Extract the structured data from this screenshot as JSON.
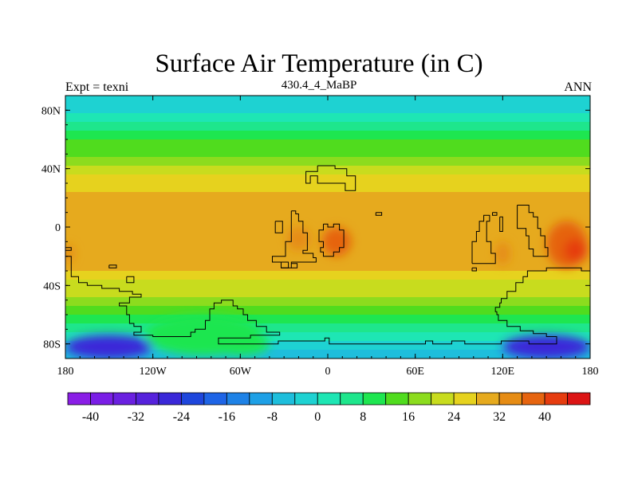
{
  "chart_data": {
    "type": "heatmap",
    "title": "Surface Air Temperature (in C)",
    "subtitle": "430.4_4_MaBP",
    "left_label": "Expt = texni",
    "right_label": "ANN",
    "x_ticks": [
      {
        "value": -180,
        "label": "180"
      },
      {
        "value": -120,
        "label": "120W"
      },
      {
        "value": -60,
        "label": "60W"
      },
      {
        "value": 0,
        "label": "0"
      },
      {
        "value": 60,
        "label": "60E"
      },
      {
        "value": 120,
        "label": "120E"
      },
      {
        "value": 180,
        "label": "180"
      }
    ],
    "y_ticks": [
      {
        "value": 80,
        "label": "80N"
      },
      {
        "value": 40,
        "label": "40N"
      },
      {
        "value": 0,
        "label": "0"
      },
      {
        "value": -40,
        "label": "40S"
      },
      {
        "value": -80,
        "label": "80S"
      }
    ],
    "xlim": [
      -180,
      180
    ],
    "ylim": [
      -90,
      90
    ],
    "colorbar": {
      "levels": [
        -44,
        -40,
        -36,
        -32,
        -28,
        -24,
        -20,
        -16,
        -12,
        -8,
        -4,
        0,
        4,
        8,
        12,
        16,
        20,
        24,
        28,
        32,
        36,
        40,
        44
      ],
      "tick_labels": [
        {
          "value": -40,
          "label": "-40"
        },
        {
          "value": -32,
          "label": "-32"
        },
        {
          "value": -24,
          "label": "-24"
        },
        {
          "value": -16,
          "label": "-16"
        },
        {
          "value": -8,
          "label": "-8"
        },
        {
          "value": 0,
          "label": "0"
        },
        {
          "value": 8,
          "label": "8"
        },
        {
          "value": 16,
          "label": "16"
        },
        {
          "value": 24,
          "label": "24"
        },
        {
          "value": 32,
          "label": "32"
        },
        {
          "value": 40,
          "label": "40"
        }
      ],
      "colors": [
        "#8a1ee6",
        "#7a1ee6",
        "#6a20e0",
        "#5622dc",
        "#3a28d8",
        "#1e46dc",
        "#1e64e6",
        "#1e82e6",
        "#1ea0e6",
        "#1ebedc",
        "#1ed2d2",
        "#1ee6b4",
        "#1ee68c",
        "#1ee650",
        "#50dc1e",
        "#8cdc1e",
        "#c8dc1e",
        "#e6d21e",
        "#e6aa1e",
        "#e68c14",
        "#e6640f",
        "#e63c0f",
        "#dc1414"
      ]
    },
    "zonal_mean_temperature": [
      {
        "lat": 90,
        "value": -4
      },
      {
        "lat": 84,
        "value": -1
      },
      {
        "lat": 78,
        "value": 2
      },
      {
        "lat": 72,
        "value": 5
      },
      {
        "lat": 66,
        "value": 9
      },
      {
        "lat": 60,
        "value": 12
      },
      {
        "lat": 54,
        "value": 15
      },
      {
        "lat": 48,
        "value": 18
      },
      {
        "lat": 42,
        "value": 21
      },
      {
        "lat": 36,
        "value": 24
      },
      {
        "lat": 30,
        "value": 26
      },
      {
        "lat": 24,
        "value": 28
      },
      {
        "lat": 18,
        "value": 29
      },
      {
        "lat": 12,
        "value": 30
      },
      {
        "lat": 6,
        "value": 30
      },
      {
        "lat": 0,
        "value": 30
      },
      {
        "lat": -6,
        "value": 30
      },
      {
        "lat": -12,
        "value": 30
      },
      {
        "lat": -18,
        "value": 29
      },
      {
        "lat": -24,
        "value": 28
      },
      {
        "lat": -30,
        "value": 26
      },
      {
        "lat": -36,
        "value": 23
      },
      {
        "lat": -42,
        "value": 20
      },
      {
        "lat": -48,
        "value": 16
      },
      {
        "lat": -54,
        "value": 12
      },
      {
        "lat": -60,
        "value": 8
      },
      {
        "lat": -66,
        "value": 4
      },
      {
        "lat": -72,
        "value": 0
      },
      {
        "lat": -78,
        "value": -3
      },
      {
        "lat": -84,
        "value": -6
      },
      {
        "lat": -90,
        "value": -8
      }
    ],
    "warm_regions": [
      {
        "lon": -20,
        "lat": -8,
        "rlon": 8,
        "rlat": 8,
        "value": 34
      },
      {
        "lon": 6,
        "lat": -10,
        "rlon": 10,
        "rlat": 10,
        "value": 36
      },
      {
        "lon": 120,
        "lat": -18,
        "rlon": 5,
        "rlat": 8,
        "value": 33
      },
      {
        "lon": 164,
        "lat": -12,
        "rlon": 14,
        "rlat": 16,
        "value": 38
      },
      {
        "lon": 170,
        "lat": -16,
        "rlon": 8,
        "rlat": 8,
        "value": 42
      },
      {
        "lon": -178,
        "lat": -18,
        "rlon": 4,
        "rlat": 6,
        "value": 33
      }
    ],
    "cold_regions": [
      {
        "lon": -85,
        "lat": -74,
        "rlon": 40,
        "rlat": 14,
        "value": 10
      },
      {
        "lon": -60,
        "lat": -80,
        "rlon": 20,
        "rlat": 8,
        "value": 8
      },
      {
        "lon": -150,
        "lat": -82,
        "rlon": 30,
        "rlat": 8,
        "value": -26
      },
      {
        "lon": 150,
        "lat": -82,
        "rlon": 30,
        "rlat": 8,
        "value": -26
      }
    ],
    "coastlines": [
      [
        [
          -7,
          42
        ],
        [
          5,
          42
        ],
        [
          5,
          40
        ],
        [
          13,
          40
        ],
        [
          13,
          35
        ],
        [
          19,
          35
        ],
        [
          19,
          25
        ],
        [
          12,
          25
        ],
        [
          12,
          30
        ],
        [
          -7,
          30
        ],
        [
          -7,
          35
        ],
        [
          -12,
          35
        ],
        [
          -12,
          30
        ],
        [
          -15,
          30
        ],
        [
          -15,
          38
        ],
        [
          -7,
          38
        ],
        [
          -7,
          42
        ]
      ],
      [
        [
          -25,
          11
        ],
        [
          -22,
          11
        ],
        [
          -22,
          9
        ],
        [
          -20,
          9
        ],
        [
          -20,
          4
        ],
        [
          -17,
          4
        ],
        [
          -17,
          -4
        ],
        [
          -14,
          -4
        ],
        [
          -14,
          -16
        ],
        [
          -17,
          -16
        ],
        [
          -17,
          -18
        ],
        [
          -10,
          -18
        ],
        [
          -10,
          -21
        ],
        [
          -8,
          -21
        ],
        [
          -8,
          -24
        ],
        [
          -25,
          -24
        ],
        [
          -25,
          -28
        ],
        [
          -32,
          -28
        ],
        [
          -32,
          -24
        ],
        [
          -38,
          -24
        ],
        [
          -38,
          -20
        ],
        [
          -29,
          -20
        ],
        [
          -29,
          -10
        ],
        [
          -25,
          -10
        ],
        [
          -25,
          11
        ]
      ],
      [
        [
          -36,
          4
        ],
        [
          -31,
          4
        ],
        [
          -31,
          -4
        ],
        [
          -36,
          -4
        ],
        [
          -36,
          4
        ]
      ],
      [
        [
          -25,
          -28
        ],
        [
          -21,
          -28
        ],
        [
          -21,
          -25
        ],
        [
          -25,
          -25
        ]
      ],
      [
        [
          -32,
          -24
        ],
        [
          -27,
          -24
        ],
        [
          -27,
          -28
        ],
        [
          -32,
          -28
        ]
      ],
      [
        [
          -3,
          2
        ],
        [
          0,
          2
        ],
        [
          0,
          0
        ],
        [
          4,
          0
        ],
        [
          4,
          2
        ],
        [
          8,
          2
        ],
        [
          8,
          -2
        ],
        [
          11,
          -2
        ],
        [
          11,
          -14
        ],
        [
          8,
          -14
        ],
        [
          8,
          -17
        ],
        [
          4,
          -17
        ],
        [
          4,
          -20
        ],
        [
          -3,
          -20
        ],
        [
          -3,
          -17
        ],
        [
          -5,
          -17
        ],
        [
          -5,
          -14
        ],
        [
          -3,
          -14
        ],
        [
          -3,
          -10
        ],
        [
          -6,
          -10
        ],
        [
          -6,
          -2
        ],
        [
          -3,
          -2
        ],
        [
          -3,
          2
        ]
      ],
      [
        [
          33,
          10
        ],
        [
          37,
          10
        ],
        [
          37,
          8
        ],
        [
          33,
          8
        ],
        [
          33,
          10
        ]
      ],
      [
        [
          99,
          -25
        ],
        [
          99,
          -10
        ],
        [
          102,
          -10
        ],
        [
          102,
          -3
        ],
        [
          104,
          -3
        ],
        [
          104,
          4
        ],
        [
          107,
          4
        ],
        [
          107,
          8
        ],
        [
          111,
          8
        ],
        [
          111,
          4
        ],
        [
          109,
          4
        ],
        [
          109,
          -10
        ],
        [
          112,
          -10
        ],
        [
          112,
          -18
        ],
        [
          115,
          -18
        ],
        [
          115,
          -25
        ],
        [
          99,
          -25
        ]
      ],
      [
        [
          113,
          10
        ],
        [
          116,
          10
        ],
        [
          116,
          8
        ],
        [
          113,
          8
        ],
        [
          113,
          10
        ]
      ],
      [
        [
          118,
          7
        ],
        [
          120,
          7
        ],
        [
          120,
          -3
        ],
        [
          118,
          -3
        ],
        [
          118,
          7
        ]
      ],
      [
        [
          130,
          15
        ],
        [
          138,
          15
        ],
        [
          138,
          10
        ],
        [
          141,
          10
        ],
        [
          141,
          7
        ],
        [
          144,
          7
        ],
        [
          144,
          -1
        ],
        [
          146,
          -1
        ],
        [
          146,
          -6
        ],
        [
          149,
          -6
        ],
        [
          149,
          -14
        ],
        [
          151,
          -14
        ],
        [
          151,
          -20
        ],
        [
          141,
          -20
        ],
        [
          141,
          -15
        ],
        [
          138,
          -15
        ],
        [
          138,
          -6
        ],
        [
          136,
          -6
        ],
        [
          136,
          -1
        ],
        [
          130,
          -1
        ],
        [
          130,
          15
        ]
      ],
      [
        [
          99,
          -28
        ],
        [
          102,
          -28
        ],
        [
          102,
          -30
        ],
        [
          99,
          -30
        ],
        [
          99,
          -28
        ]
      ],
      [
        [
          -180,
          -14
        ],
        [
          -176,
          -14
        ],
        [
          -176,
          -16
        ],
        [
          -180,
          -16
        ]
      ],
      [
        [
          -150,
          -26
        ],
        [
          -145,
          -26
        ],
        [
          -145,
          -28
        ],
        [
          -150,
          -28
        ],
        [
          -150,
          -26
        ]
      ],
      [
        [
          -138,
          -34
        ],
        [
          -133,
          -34
        ],
        [
          -133,
          -38
        ],
        [
          -138,
          -38
        ],
        [
          -138,
          -34
        ]
      ],
      [
        [
          -180,
          -20
        ],
        [
          -176,
          -20
        ],
        [
          -176,
          -34
        ],
        [
          -171,
          -34
        ],
        [
          -171,
          -38
        ],
        [
          -165,
          -38
        ],
        [
          -165,
          -40
        ],
        [
          -155,
          -40
        ],
        [
          -155,
          -42
        ],
        [
          -143,
          -42
        ],
        [
          -143,
          -44
        ],
        [
          -134,
          -44
        ],
        [
          -134,
          -46
        ],
        [
          -128,
          -46
        ],
        [
          -128,
          -48
        ],
        [
          -136,
          -48
        ],
        [
          -136,
          -52
        ],
        [
          -143,
          -52
        ],
        [
          -143,
          -54
        ],
        [
          -138,
          -54
        ],
        [
          -138,
          -60
        ],
        [
          -136,
          -60
        ],
        [
          -136,
          -66
        ],
        [
          -133,
          -66
        ],
        [
          -133,
          -68
        ],
        [
          -128,
          -68
        ],
        [
          -128,
          -72
        ],
        [
          -133,
          -72
        ],
        [
          -133,
          -74
        ],
        [
          -120,
          -74
        ],
        [
          -120,
          -75
        ],
        [
          -94,
          -75
        ],
        [
          -94,
          -72
        ],
        [
          -91,
          -72
        ],
        [
          -91,
          -70
        ],
        [
          -84,
          -70
        ],
        [
          -84,
          -64
        ],
        [
          -81,
          -64
        ],
        [
          -81,
          -56
        ],
        [
          -78,
          -56
        ],
        [
          -78,
          -52
        ],
        [
          -73,
          -52
        ],
        [
          -73,
          -50
        ],
        [
          -65,
          -50
        ],
        [
          -65,
          -54
        ],
        [
          -62,
          -54
        ],
        [
          -62,
          -56
        ],
        [
          -58,
          -56
        ],
        [
          -58,
          -60
        ],
        [
          -55,
          -60
        ],
        [
          -55,
          -64
        ],
        [
          -49,
          -64
        ],
        [
          -49,
          -68
        ],
        [
          -42,
          -68
        ],
        [
          -42,
          -72
        ],
        [
          -33,
          -72
        ],
        [
          -33,
          -74
        ],
        [
          -53,
          -74
        ],
        [
          -53,
          -76
        ],
        [
          -75,
          -76
        ],
        [
          -75,
          -80
        ],
        [
          -34,
          -80
        ],
        [
          -34,
          -78
        ],
        [
          -2,
          -78
        ],
        [
          -2,
          -76
        ],
        [
          1,
          -76
        ],
        [
          1,
          -80
        ],
        [
          67,
          -80
        ],
        [
          67,
          -78
        ],
        [
          72,
          -78
        ],
        [
          72,
          -80
        ],
        [
          85,
          -80
        ],
        [
          85,
          -78
        ],
        [
          94,
          -78
        ],
        [
          94,
          -80
        ],
        [
          119,
          -80
        ],
        [
          119,
          -78
        ],
        [
          138,
          -78
        ],
        [
          138,
          -80
        ],
        [
          157,
          -80
        ],
        [
          157,
          -75
        ],
        [
          150,
          -75
        ],
        [
          150,
          -73
        ],
        [
          141,
          -73
        ],
        [
          141,
          -71
        ],
        [
          132,
          -71
        ],
        [
          132,
          -68
        ],
        [
          123,
          -68
        ],
        [
          123,
          -64
        ],
        [
          117,
          -64
        ],
        [
          117,
          -60
        ],
        [
          116,
          -60
        ],
        [
          116,
          -58
        ],
        [
          115,
          -58
        ],
        [
          115,
          -55
        ],
        [
          118,
          -55
        ],
        [
          118,
          -52
        ],
        [
          119,
          -52
        ],
        [
          119,
          -49
        ],
        [
          123,
          -49
        ],
        [
          123,
          -44
        ],
        [
          129,
          -44
        ],
        [
          129,
          -38
        ],
        [
          134,
          -38
        ],
        [
          134,
          -34
        ],
        [
          137,
          -34
        ],
        [
          137,
          -30
        ],
        [
          150,
          -30
        ],
        [
          150,
          -28
        ],
        [
          174,
          -28
        ],
        [
          174,
          -30
        ],
        [
          180,
          -30
        ]
      ],
      [
        [
          -180,
          -75
        ],
        [
          -180,
          -75
        ]
      ]
    ]
  }
}
